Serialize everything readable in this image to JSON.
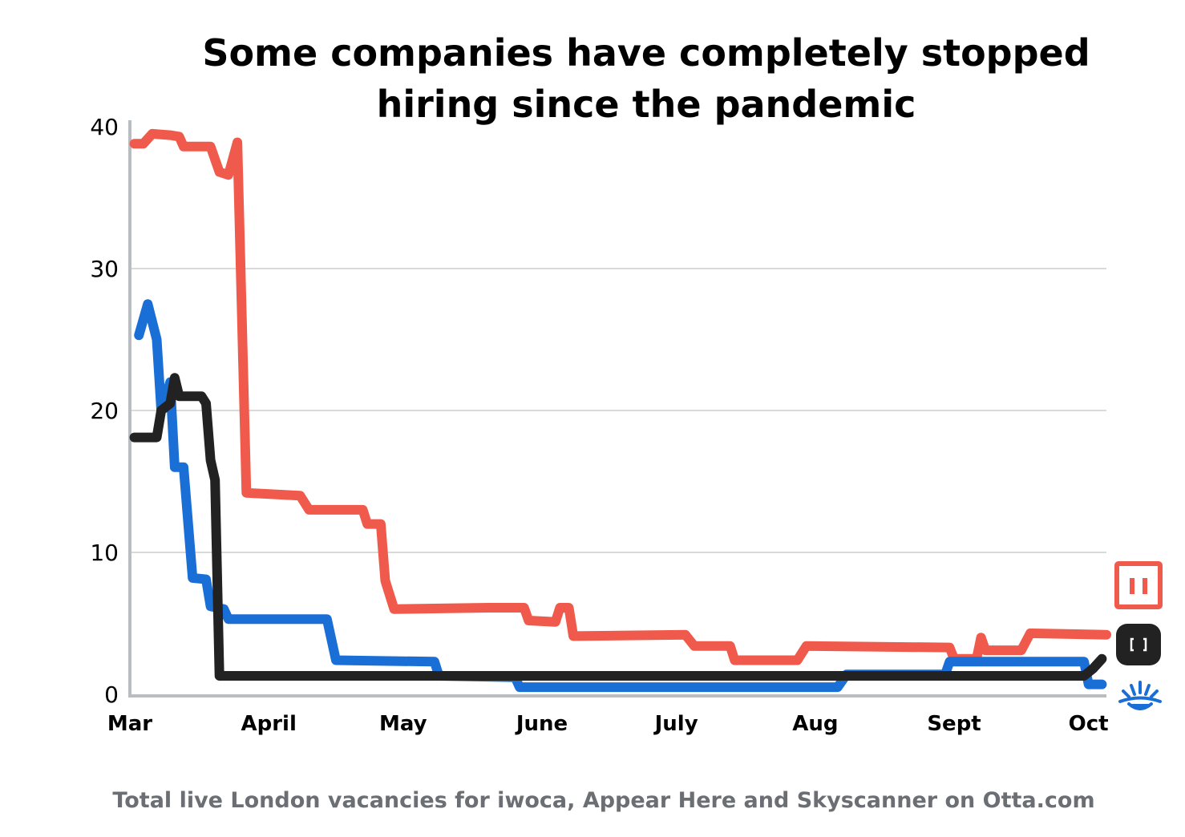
{
  "chart_data": {
    "type": "line",
    "title_lines": [
      "Some companies have completely stopped",
      "hiring since the pandemic"
    ],
    "caption": "Total live London vacancies for iwoca, Appear Here and Skyscanner on Otta.com",
    "xlabel": "",
    "ylabel": "",
    "ylim": [
      0,
      40
    ],
    "xlim": [
      "2020-03-01",
      "2020-10-05"
    ],
    "y_ticks": [
      "0",
      "10",
      "20",
      "30",
      "40"
    ],
    "y_tick_values": [
      0,
      10,
      20,
      30,
      40
    ],
    "x_ticks": [
      "Mar",
      "April",
      "May",
      "June",
      "July",
      "Aug",
      "Sept",
      "Oct"
    ],
    "x_tick_dates": [
      "2020-03-01",
      "2020-04-01",
      "2020-05-01",
      "2020-06-01",
      "2020-07-01",
      "2020-08-01",
      "2020-09-01",
      "2020-10-01"
    ],
    "grid": true,
    "series": [
      {
        "color": "#f05a4c",
        "icon": "appear-here-logo",
        "points": [
          [
            "2020-03-02",
            38.8
          ],
          [
            "2020-03-04",
            38.8
          ],
          [
            "2020-03-06",
            39.5
          ],
          [
            "2020-03-10",
            39.4
          ],
          [
            "2020-03-12",
            39.3
          ],
          [
            "2020-03-13",
            38.6
          ],
          [
            "2020-03-19",
            38.6
          ],
          [
            "2020-03-21",
            36.8
          ],
          [
            "2020-03-23",
            36.6
          ],
          [
            "2020-03-25",
            38.9
          ],
          [
            "2020-03-27",
            14.2
          ],
          [
            "2020-04-08",
            14.0
          ],
          [
            "2020-04-10",
            13.0
          ],
          [
            "2020-04-22",
            13.0
          ],
          [
            "2020-04-23",
            12.0
          ],
          [
            "2020-04-26",
            12.0
          ],
          [
            "2020-04-27",
            8.0
          ],
          [
            "2020-04-29",
            6.0
          ],
          [
            "2020-05-20",
            6.1
          ],
          [
            "2020-05-28",
            6.1
          ],
          [
            "2020-05-29",
            5.2
          ],
          [
            "2020-06-04",
            5.1
          ],
          [
            "2020-06-05",
            6.1
          ],
          [
            "2020-06-07",
            6.1
          ],
          [
            "2020-06-08",
            4.1
          ],
          [
            "2020-07-03",
            4.2
          ],
          [
            "2020-07-05",
            3.4
          ],
          [
            "2020-07-13",
            3.4
          ],
          [
            "2020-07-14",
            2.4
          ],
          [
            "2020-07-28",
            2.4
          ],
          [
            "2020-07-30",
            3.4
          ],
          [
            "2020-08-31",
            3.3
          ],
          [
            "2020-09-01",
            2.5
          ],
          [
            "2020-09-06",
            2.5
          ],
          [
            "2020-09-07",
            4.0
          ],
          [
            "2020-09-08",
            3.1
          ],
          [
            "2020-09-16",
            3.1
          ],
          [
            "2020-09-18",
            4.3
          ],
          [
            "2020-10-05",
            4.2
          ]
        ]
      },
      {
        "color": "#1a6fd6",
        "icon": "skyscanner-logo",
        "points": [
          [
            "2020-03-03",
            25.3
          ],
          [
            "2020-03-05",
            27.5
          ],
          [
            "2020-03-07",
            25.0
          ],
          [
            "2020-03-08",
            20.0
          ],
          [
            "2020-03-10",
            22.0
          ],
          [
            "2020-03-11",
            16.0
          ],
          [
            "2020-03-13",
            16.0
          ],
          [
            "2020-03-15",
            8.2
          ],
          [
            "2020-03-18",
            8.1
          ],
          [
            "2020-03-19",
            6.2
          ],
          [
            "2020-03-22",
            6.0
          ],
          [
            "2020-03-23",
            5.3
          ],
          [
            "2020-04-14",
            5.3
          ],
          [
            "2020-04-16",
            2.4
          ],
          [
            "2020-05-08",
            2.3
          ],
          [
            "2020-05-09",
            1.3
          ],
          [
            "2020-05-26",
            1.2
          ],
          [
            "2020-05-27",
            0.5
          ],
          [
            "2020-08-06",
            0.5
          ],
          [
            "2020-08-08",
            1.4
          ],
          [
            "2020-08-30",
            1.4
          ],
          [
            "2020-08-31",
            2.3
          ],
          [
            "2020-09-30",
            2.3
          ],
          [
            "2020-10-01",
            0.7
          ],
          [
            "2020-10-04",
            0.7
          ]
        ]
      },
      {
        "color": "#222222",
        "icon": "iwoca-logo",
        "points": [
          [
            "2020-03-02",
            18.1
          ],
          [
            "2020-03-07",
            18.1
          ],
          [
            "2020-03-08",
            20.0
          ],
          [
            "2020-03-10",
            20.5
          ],
          [
            "2020-03-11",
            22.3
          ],
          [
            "2020-03-12",
            21.0
          ],
          [
            "2020-03-17",
            21.0
          ],
          [
            "2020-03-18",
            20.5
          ],
          [
            "2020-03-19",
            16.5
          ],
          [
            "2020-03-20",
            15.1
          ],
          [
            "2020-03-21",
            1.3
          ],
          [
            "2020-09-30",
            1.3
          ],
          [
            "2020-10-02",
            1.8
          ],
          [
            "2020-10-04",
            2.5
          ]
        ]
      }
    ]
  }
}
